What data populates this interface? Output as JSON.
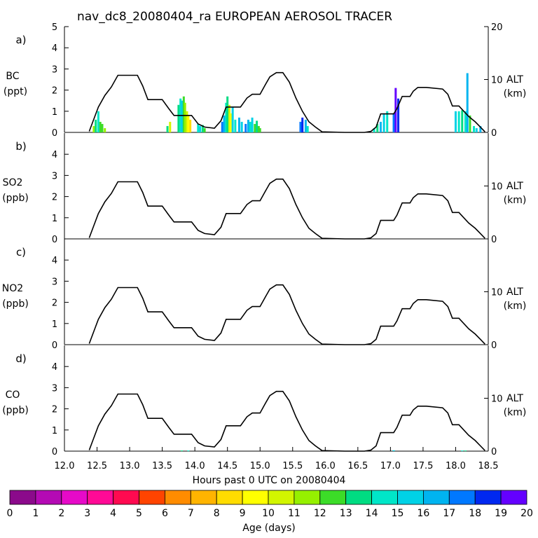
{
  "chart_data": {
    "type": "line",
    "title": "nav_dc8_20080404_ra EUROPEAN AEROSOL TRACER",
    "xlabel": "Hours past 0 UTC on 20080404",
    "xlim": [
      12.0,
      18.5
    ],
    "x_ticks": [
      "12.0",
      "12.5",
      "13.0",
      "13.5",
      "14.0",
      "14.5",
      "15.0",
      "15.5",
      "16.0",
      "16.5",
      "17.0",
      "17.5",
      "18.0",
      "18.5"
    ],
    "right_axis": {
      "label": "ALT",
      "unit": "(km)",
      "ylim": [
        0,
        20
      ],
      "ticks": [
        "0",
        "10",
        "20"
      ]
    },
    "panels": [
      {
        "letter": "a)",
        "species": "BC",
        "unit": "(ppt)",
        "ylim": [
          0,
          5
        ],
        "y_ticks": [
          "0",
          "1",
          "2",
          "3",
          "4",
          "5"
        ],
        "alt_ticks": [
          "0",
          "10",
          "20"
        ]
      },
      {
        "letter": "b)",
        "species": "SO2",
        "unit": "(ppb)",
        "ylim": [
          0,
          5
        ],
        "y_ticks": [
          "0",
          "1",
          "2",
          "3",
          "4"
        ],
        "alt_ticks": [
          "0",
          "10"
        ]
      },
      {
        "letter": "c)",
        "species": "NO2",
        "unit": "(ppb)",
        "ylim": [
          0,
          5
        ],
        "y_ticks": [
          "0",
          "1",
          "2",
          "3",
          "4"
        ],
        "alt_ticks": [
          "0",
          "10"
        ]
      },
      {
        "letter": "d)",
        "species": "CO",
        "unit": "(ppb)",
        "ylim": [
          0,
          5
        ],
        "y_ticks": [
          "0",
          "1",
          "2",
          "3",
          "4"
        ],
        "alt_ticks": [
          "0",
          "10"
        ]
      }
    ],
    "altitude_series": {
      "name": "ALT (km)",
      "x": [
        12.38,
        12.45,
        12.52,
        12.62,
        12.72,
        12.82,
        13.12,
        13.2,
        13.28,
        13.5,
        13.6,
        13.68,
        13.95,
        14.05,
        14.15,
        14.3,
        14.4,
        14.48,
        14.7,
        14.8,
        14.88,
        15.0,
        15.08,
        15.15,
        15.25,
        15.35,
        15.45,
        15.55,
        15.65,
        15.75,
        15.85,
        15.95,
        16.3,
        16.6,
        16.7,
        16.78,
        16.85,
        17.05,
        17.1,
        17.18,
        17.3,
        17.35,
        17.42,
        17.55,
        17.8,
        17.88,
        17.95,
        18.05,
        18.2,
        18.3,
        18.38,
        18.45
      ],
      "y": [
        0.2,
        2.5,
        4.8,
        7.0,
        8.6,
        10.8,
        10.8,
        8.8,
        6.2,
        6.2,
        4.5,
        3.2,
        3.2,
        1.6,
        1.0,
        0.8,
        2.2,
        4.8,
        4.8,
        6.5,
        7.2,
        7.2,
        9.0,
        10.5,
        11.3,
        11.3,
        9.5,
        6.5,
        4.0,
        2.0,
        1.0,
        0.1,
        0.0,
        0.0,
        0.2,
        1.0,
        3.5,
        3.5,
        4.5,
        6.8,
        6.8,
        7.8,
        8.5,
        8.5,
        8.2,
        7.2,
        5.0,
        5.0,
        3.0,
        2.0,
        1.0,
        0.1
      ]
    },
    "tracer_bars": [
      {
        "panel": 0,
        "x": [
          12.45,
          12.48,
          12.52,
          12.55,
          12.58,
          12.62,
          13.58,
          13.62,
          13.75,
          13.78,
          13.8,
          13.83,
          13.85,
          13.88,
          13.9,
          13.93,
          14.05,
          14.08,
          14.12,
          14.15,
          14.42,
          14.45,
          14.48,
          14.5,
          14.53,
          14.55,
          14.58,
          14.62,
          14.68,
          14.72,
          14.78,
          14.82,
          14.85,
          14.88,
          14.92,
          14.95,
          14.98,
          15.0,
          15.62,
          15.65,
          15.7,
          15.73,
          16.75,
          16.8,
          16.85,
          16.9,
          16.95,
          17.05,
          17.08,
          17.12,
          18.0,
          18.05,
          18.1,
          18.15,
          18.18,
          18.22,
          18.28,
          18.32,
          18.38
        ],
        "values": [
          0.3,
          0.6,
          1.0,
          0.5,
          0.4,
          0.2,
          0.3,
          0.5,
          1.3,
          1.6,
          1.5,
          1.7,
          1.4,
          1.0,
          0.8,
          0.6,
          0.4,
          0.3,
          0.35,
          0.2,
          0.5,
          0.8,
          1.4,
          1.7,
          1.3,
          0.9,
          1.2,
          0.6,
          0.7,
          0.5,
          0.4,
          0.6,
          0.5,
          0.7,
          0.4,
          0.55,
          0.3,
          0.2,
          0.5,
          0.7,
          0.6,
          0.3,
          0.2,
          0.4,
          0.5,
          0.9,
          1.0,
          0.9,
          2.1,
          1.6,
          1.0,
          1.0,
          1.05,
          1.0,
          2.8,
          0.8,
          0.3,
          0.2,
          0.3
        ],
        "ages": [
          11,
          13,
          14,
          12,
          12,
          11,
          13,
          10,
          13,
          14,
          15,
          12,
          11,
          10,
          9,
          8,
          14,
          15,
          13,
          12,
          17,
          16,
          14,
          13,
          10,
          9,
          15,
          14,
          16,
          15,
          17,
          16,
          14,
          15,
          12,
          13,
          12,
          12,
          17,
          18,
          16,
          14,
          14,
          13,
          16,
          15,
          14,
          17,
          19,
          18,
          15,
          14,
          13,
          14,
          16,
          12,
          14,
          15,
          16
        ]
      },
      {
        "panel": 3,
        "x": [
          13.8,
          13.9,
          17.05,
          18.1,
          18.15
        ],
        "values": [
          0.03,
          0.03,
          0.04,
          0.03,
          0.03
        ],
        "ages": [
          13,
          14,
          15,
          14,
          13
        ]
      }
    ],
    "colorbar": {
      "label": "Age (days)",
      "ticks": [
        "0",
        "1",
        "2",
        "3",
        "4",
        "5",
        "6",
        "7",
        "8",
        "9",
        "10",
        "11",
        "12",
        "13",
        "14",
        "15",
        "16",
        "17",
        "18",
        "19",
        "20"
      ],
      "colors": [
        "#8b0a8b",
        "#b40ab4",
        "#e60ac8",
        "#ff0a96",
        "#ff0a50",
        "#ff4400",
        "#ff8c00",
        "#ffb400",
        "#ffdc00",
        "#ffff00",
        "#d2f500",
        "#96f000",
        "#3cdc28",
        "#00dc82",
        "#00e6c8",
        "#00d2e6",
        "#00b4f0",
        "#0078ff",
        "#0028f0",
        "#6400ff"
      ]
    }
  }
}
